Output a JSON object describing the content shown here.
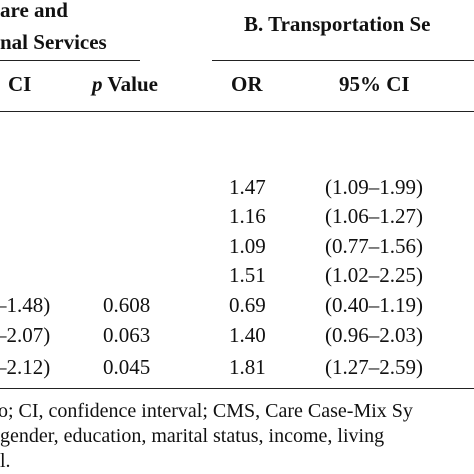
{
  "header": {
    "group_a_line1": "are and",
    "group_a_line2": "nal Services",
    "group_b": "B. Transportation Se",
    "col_ci_partial": "CI",
    "col_p": "p",
    "col_p_suffix": " Value",
    "col_or": "OR",
    "col_95ci": "95% CI"
  },
  "rows": [
    {
      "ci_a": "",
      "p": "",
      "or": "1.47",
      "ci_b": "(1.09–1.99)"
    },
    {
      "ci_a": "",
      "p": "",
      "or": "1.16",
      "ci_b": "(1.06–1.27)"
    },
    {
      "ci_a": "",
      "p": "",
      "or": "1.09",
      "ci_b": "(0.77–1.56)"
    },
    {
      "ci_a": "",
      "p": "",
      "or": "1.51",
      "ci_b": "(1.02–2.25)"
    },
    {
      "ci_a": "–1.48)",
      "p": "0.608",
      "or": "0.69",
      "ci_b": "(0.40–1.19)"
    },
    {
      "ci_a": "–2.07)",
      "p": "0.063",
      "or": "1.40",
      "ci_b": "(0.96–2.03)"
    },
    {
      "ci_a": "–2.12)",
      "p": "0.045",
      "or": "1.81",
      "ci_b": "(1.27–2.59)"
    }
  ],
  "footnote": {
    "line1": "o; CI, confidence interval; CMS, Care Case-Mix Sy",
    "line2": " gender, education, marital status, income, living",
    "line3": "l."
  }
}
